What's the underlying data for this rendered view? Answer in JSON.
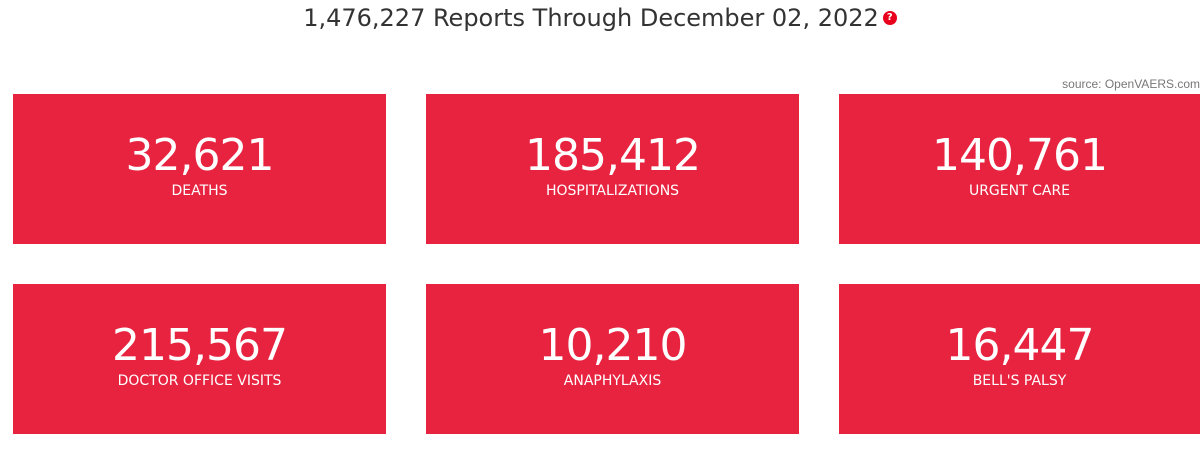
{
  "header": {
    "title": "1,476,227 Reports Through December 02, 2022",
    "help_icon": "?"
  },
  "source_note": "source: OpenVAERS.com",
  "stats": [
    {
      "value": "32,621",
      "label": "DEATHS"
    },
    {
      "value": "185,412",
      "label": "HOSPITALIZATIONS"
    },
    {
      "value": "140,761",
      "label": "URGENT CARE"
    },
    {
      "value": "215,567",
      "label": "DOCTOR OFFICE VISITS"
    },
    {
      "value": "10,210",
      "label": "ANAPHYLAXIS"
    },
    {
      "value": "16,447",
      "label": "BELL'S PALSY"
    }
  ],
  "colors": {
    "card_background": "#e72340",
    "help_icon": "#e8001c",
    "headline_text": "#333333"
  }
}
